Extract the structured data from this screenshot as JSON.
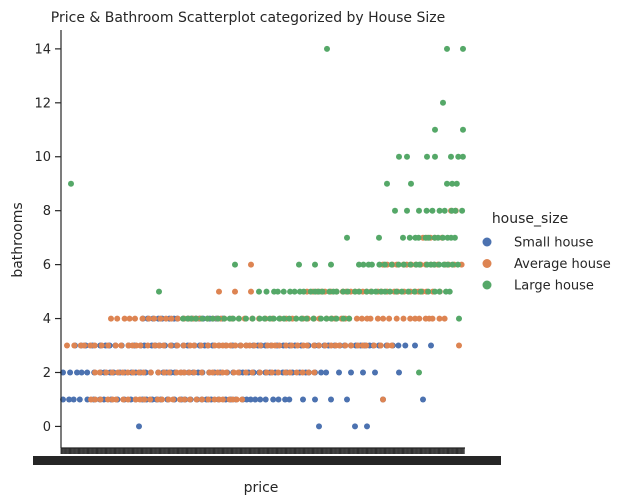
{
  "chart_data": {
    "type": "scatter",
    "title": "Price & Bathroom Scatterplot categorized by House Size",
    "xlabel": "price",
    "ylabel": "bathrooms",
    "ylim": [
      -0.8,
      14.7
    ],
    "yticks": [
      0,
      2,
      4,
      6,
      8,
      10,
      12,
      14
    ],
    "x_is_categorical_price": true,
    "grid": false,
    "legend": {
      "title": "house_size",
      "placement": "right",
      "entries": [
        {
          "name": "Small house",
          "color": "#4C72B0"
        },
        {
          "name": "Average house",
          "color": "#DD8452"
        },
        {
          "name": "Large house",
          "color": "#55A868"
        }
      ]
    },
    "series": [
      {
        "name": "Small house",
        "color": "#4C72B0",
        "bands": [
          {
            "y": 0,
            "ranges": []
          },
          {
            "y": 1,
            "ranges": [
              [
                0.0,
                0.57
              ]
            ]
          },
          {
            "y": 2,
            "ranges": [
              [
                0.0,
                0.66
              ]
            ]
          },
          {
            "y": 3,
            "ranges": [
              [
                0.03,
                0.86
              ]
            ]
          },
          {
            "y": 4,
            "ranges": [
              [
                0.2,
                0.4
              ]
            ]
          }
        ],
        "points": [
          {
            "x": 0.19,
            "y": 0
          },
          {
            "x": 0.64,
            "y": 0
          },
          {
            "x": 0.73,
            "y": 0
          },
          {
            "x": 0.76,
            "y": 0
          },
          {
            "x": 0.6,
            "y": 1
          },
          {
            "x": 0.63,
            "y": 1
          },
          {
            "x": 0.67,
            "y": 1
          },
          {
            "x": 0.71,
            "y": 1
          },
          {
            "x": 0.8,
            "y": 1
          },
          {
            "x": 0.9,
            "y": 1
          },
          {
            "x": 0.69,
            "y": 2
          },
          {
            "x": 0.72,
            "y": 2
          },
          {
            "x": 0.75,
            "y": 2
          },
          {
            "x": 0.78,
            "y": 2
          },
          {
            "x": 0.84,
            "y": 2
          },
          {
            "x": 0.88,
            "y": 3
          },
          {
            "x": 0.92,
            "y": 3
          }
        ]
      },
      {
        "name": "Average house",
        "color": "#DD8452",
        "bands": [
          {
            "y": 1,
            "ranges": [
              [
                0.07,
                0.45
              ]
            ]
          },
          {
            "y": 2,
            "ranges": [
              [
                0.08,
                0.63
              ]
            ]
          },
          {
            "y": 3,
            "ranges": [
              [
                0.01,
                0.83
              ]
            ]
          },
          {
            "y": 4,
            "ranges": [
              [
                0.12,
                0.96
              ]
            ]
          },
          {
            "y": 5,
            "ranges": [
              [
                0.61,
                0.95
              ]
            ]
          },
          {
            "y": 6,
            "ranges": [
              [
                0.8,
                1.0
              ]
            ]
          },
          {
            "y": 7,
            "ranges": [
              [
                0.9,
                0.96
              ]
            ]
          },
          {
            "y": 8,
            "ranges": [
              [
                0.97,
                1.0
              ]
            ]
          }
        ],
        "points": [
          {
            "x": 0.8,
            "y": 1
          },
          {
            "x": 0.39,
            "y": 5
          },
          {
            "x": 0.43,
            "y": 5
          },
          {
            "x": 0.47,
            "y": 5
          },
          {
            "x": 0.47,
            "y": 6
          },
          {
            "x": 0.99,
            "y": 3
          }
        ]
      },
      {
        "name": "Large house",
        "color": "#55A868",
        "bands": [
          {
            "y": 4,
            "ranges": [
              [
                0.3,
                0.72
              ]
            ]
          },
          {
            "y": 5,
            "ranges": [
              [
                0.49,
                0.98
              ]
            ]
          },
          {
            "y": 6,
            "ranges": [
              [
                0.74,
                0.99
              ]
            ]
          },
          {
            "y": 7,
            "ranges": [
              [
                0.85,
                0.99
              ]
            ]
          },
          {
            "y": 8,
            "ranges": [
              [
                0.89,
                1.0
              ]
            ]
          },
          {
            "y": 9,
            "ranges": [
              [
                0.96,
                1.0
              ]
            ]
          },
          {
            "y": 10,
            "ranges": [
              [
                0.97,
                1.0
              ]
            ]
          }
        ],
        "points": [
          {
            "x": 0.02,
            "y": 9
          },
          {
            "x": 0.24,
            "y": 5
          },
          {
            "x": 0.43,
            "y": 6
          },
          {
            "x": 0.59,
            "y": 6
          },
          {
            "x": 0.63,
            "y": 6
          },
          {
            "x": 0.67,
            "y": 6
          },
          {
            "x": 0.71,
            "y": 7
          },
          {
            "x": 0.79,
            "y": 7
          },
          {
            "x": 0.83,
            "y": 8
          },
          {
            "x": 0.86,
            "y": 8
          },
          {
            "x": 0.81,
            "y": 9
          },
          {
            "x": 0.87,
            "y": 9
          },
          {
            "x": 0.84,
            "y": 10
          },
          {
            "x": 0.86,
            "y": 10
          },
          {
            "x": 0.91,
            "y": 10
          },
          {
            "x": 0.93,
            "y": 10
          },
          {
            "x": 0.93,
            "y": 11
          },
          {
            "x": 1.0,
            "y": 11
          },
          {
            "x": 0.95,
            "y": 12
          },
          {
            "x": 0.66,
            "y": 14
          },
          {
            "x": 0.96,
            "y": 14
          },
          {
            "x": 1.0,
            "y": 14
          },
          {
            "x": 0.89,
            "y": 2
          },
          {
            "x": 0.99,
            "y": 4
          }
        ]
      }
    ]
  }
}
